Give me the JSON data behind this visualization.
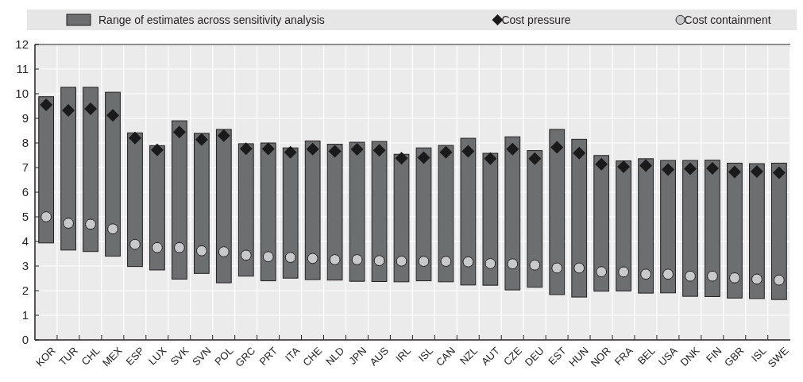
{
  "chart_data": {
    "type": "bar",
    "categories": [
      "KOR",
      "TUR",
      "CHL",
      "MEX",
      "ESP",
      "LUX",
      "SVK",
      "SVN",
      "POL",
      "GRC",
      "PRT",
      "ITA",
      "CHE",
      "NLD",
      "JPN",
      "AUS",
      "IRL",
      "ISL",
      "CAN",
      "NZL",
      "AUT",
      "CZE",
      "DEU",
      "EST",
      "HUN",
      "NOR",
      "FRA",
      "BEL",
      "USA",
      "DNK",
      "FIN",
      "GBR",
      "ISL",
      "SWE"
    ],
    "series": [
      {
        "name": "Range of estimates across sensitivity analysis",
        "color": "#6d6e70",
        "base": [
          3.94,
          3.65,
          3.59,
          3.4,
          2.98,
          2.84,
          2.47,
          2.7,
          2.32,
          2.59,
          2.4,
          2.51,
          2.45,
          2.43,
          2.38,
          2.37,
          2.36,
          2.4,
          2.36,
          2.23,
          2.22,
          2.03,
          2.14,
          1.84,
          1.74,
          1.98,
          1.99,
          1.9,
          1.91,
          1.77,
          1.76,
          1.7,
          1.68,
          1.64
        ],
        "values": [
          5.94,
          6.61,
          6.67,
          6.66,
          5.43,
          5.05,
          6.43,
          5.69,
          6.23,
          5.38,
          5.6,
          5.29,
          5.63,
          5.52,
          5.65,
          5.69,
          5.18,
          5.4,
          5.54,
          5.96,
          5.36,
          6.22,
          5.55,
          6.71,
          6.41,
          5.51,
          5.28,
          5.46,
          5.38,
          5.52,
          5.54,
          5.48,
          5.48,
          5.54
        ]
      },
      {
        "name": "Cost pressure",
        "type": "scatter",
        "marker": "diamond",
        "color": "#1a1a1a",
        "values": [
          9.55,
          9.32,
          9.39,
          9.12,
          8.2,
          7.72,
          8.44,
          8.14,
          8.3,
          7.77,
          7.76,
          7.62,
          7.75,
          7.66,
          7.74,
          7.7,
          7.38,
          7.4,
          7.62,
          7.66,
          7.36,
          7.75,
          7.36,
          7.82,
          7.59,
          7.14,
          7.03,
          7.08,
          6.92,
          6.95,
          6.97,
          6.82,
          6.84,
          6.79
        ]
      },
      {
        "name": "Cost containment",
        "type": "scatter",
        "marker": "circle",
        "color": "#c8c9cb",
        "values": [
          5.0,
          4.74,
          4.7,
          4.51,
          3.88,
          3.75,
          3.75,
          3.62,
          3.58,
          3.44,
          3.38,
          3.35,
          3.31,
          3.26,
          3.26,
          3.22,
          3.2,
          3.19,
          3.19,
          3.17,
          3.1,
          3.09,
          3.04,
          2.92,
          2.92,
          2.77,
          2.76,
          2.67,
          2.67,
          2.59,
          2.59,
          2.52,
          2.47,
          2.43
        ]
      }
    ],
    "ylim": [
      0,
      12
    ],
    "yticks": [
      0,
      1,
      2,
      3,
      4,
      5,
      6,
      7,
      8,
      9,
      10,
      11,
      12
    ],
    "grid": true,
    "legend": "top"
  }
}
